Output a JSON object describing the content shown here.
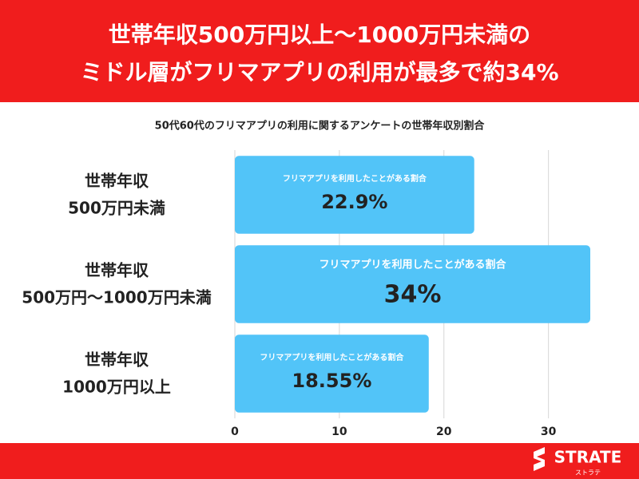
{
  "chart_data": {
    "type": "barh",
    "title": [
      "世帯年収500万円以上〜1000万円未満の",
      "ミドル層がフリマアプリの利用が最多で約34%"
    ],
    "subtitle": "50代60代のフリマアプリの利用に関するアンケートの世帯年収別割合",
    "categories": [
      [
        "世帯年収",
        "500万円未満"
      ],
      [
        "世帯年収",
        "500万円〜1000万円未満"
      ],
      [
        "世帯年収",
        "1000万円以上"
      ]
    ],
    "bar_caption": "フリマアプリを利用したことがある割合",
    "values": [
      22.9,
      34,
      18.55
    ],
    "value_labels": [
      "22.9%",
      "34%",
      "18.55%"
    ],
    "color": "#52c4f8",
    "xlim": [
      0,
      34
    ],
    "xticks": [
      0,
      10,
      20,
      30
    ],
    "grid": true
  },
  "brand": {
    "name": "STRATE",
    "kana": "ストラテ"
  }
}
